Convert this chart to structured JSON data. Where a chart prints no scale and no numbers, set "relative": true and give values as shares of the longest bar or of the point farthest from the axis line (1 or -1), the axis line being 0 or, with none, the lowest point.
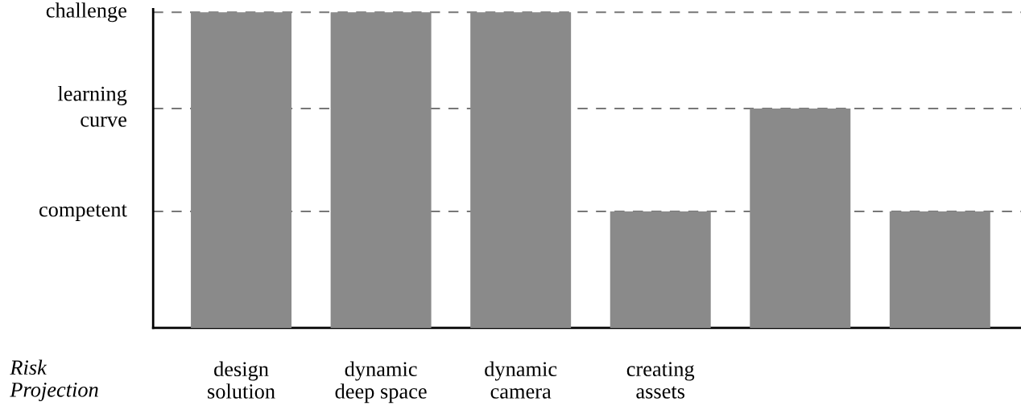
{
  "chart_data": {
    "type": "bar",
    "categories": [
      "design\nsolution",
      "dynamic\ndeep space",
      "dynamic\ncamera",
      "creating\nassets",
      null,
      null
    ],
    "values": [
      1,
      1,
      1,
      0.369,
      0.695,
      0.369
    ],
    "color": "#8a8a8a",
    "relative": true,
    "xlabel": "Risk\nProjection",
    "ref_lines": [
      {
        "axis": "y",
        "value": 1,
        "label": "challenge",
        "color": "#777777",
        "line_style": "dashed"
      },
      {
        "axis": "y",
        "value": 0.695,
        "label": "learning\ncurve",
        "color": "#777777",
        "line_style": "dashed"
      },
      {
        "axis": "y",
        "value": 0.369,
        "label": "competent",
        "color": "#777777",
        "line_style": "dashed"
      }
    ]
  }
}
